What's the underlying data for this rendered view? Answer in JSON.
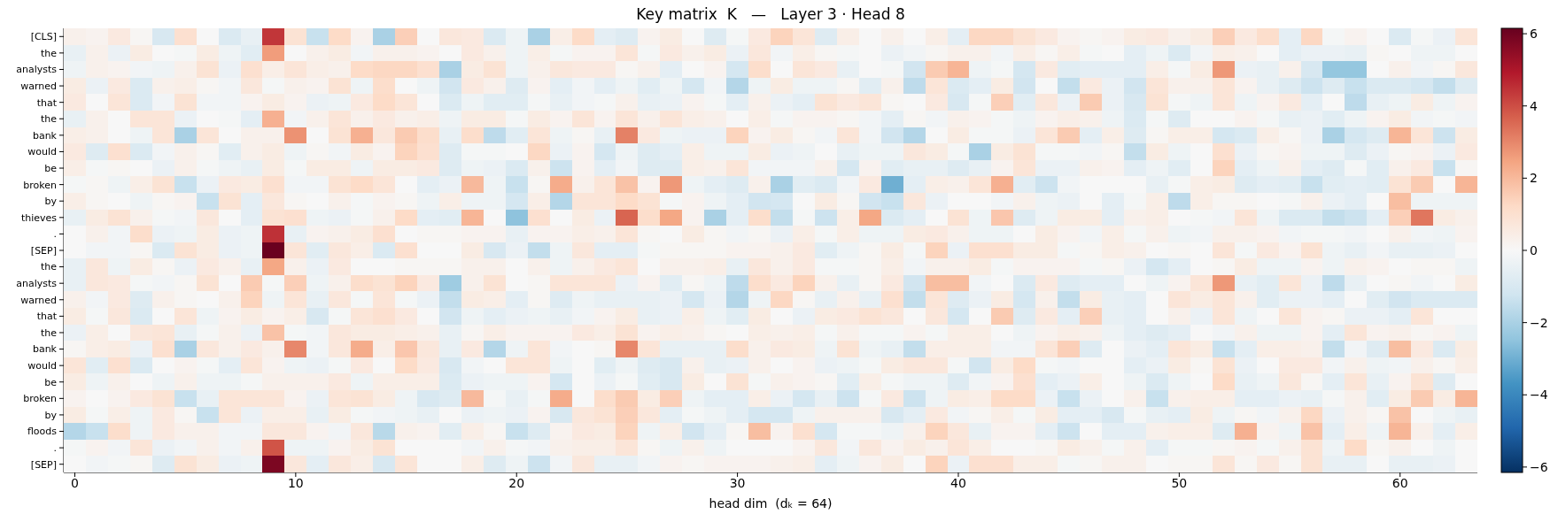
{
  "chart_data": {
    "type": "heatmap",
    "title": "Key matrix  K   —   Layer 3 · Head 8",
    "xlabel": "head dim  (dₖ = 64)",
    "x": [
      0,
      1,
      2,
      3,
      4,
      5,
      6,
      7,
      8,
      9,
      10,
      11,
      12,
      13,
      14,
      15,
      16,
      17,
      18,
      19,
      20,
      21,
      22,
      23,
      24,
      25,
      26,
      27,
      28,
      29,
      30,
      31,
      32,
      33,
      34,
      35,
      36,
      37,
      38,
      39,
      40,
      41,
      42,
      43,
      44,
      45,
      46,
      47,
      48,
      49,
      50,
      51,
      52,
      53,
      54,
      55,
      56,
      57,
      58,
      59,
      60,
      61,
      62,
      63
    ],
    "xlim": [
      -0.5,
      63.5
    ],
    "xticks": [
      0,
      10,
      20,
      30,
      40,
      50,
      60
    ],
    "y_categories": [
      "[CLS]",
      "the",
      "analysts",
      "warned",
      "that",
      "the",
      "bank",
      "would",
      "be",
      "broken",
      "by",
      "thieves",
      ".",
      "[SEP]",
      "the",
      "analysts",
      "warned",
      "that",
      "the",
      "bank",
      "would",
      "be",
      "broken",
      "by",
      "floods",
      ".",
      "[SEP]"
    ],
    "clim": [
      -6.15,
      6.15
    ],
    "cticks": [
      {
        "value": -6,
        "label": "−6"
      },
      {
        "value": -4,
        "label": "−4"
      },
      {
        "value": -2,
        "label": "−2"
      },
      0,
      2,
      4,
      6
    ],
    "cells": [
      [
        0.3,
        0.2,
        0.6,
        0.1,
        -1.0,
        1.0,
        0,
        -0.9,
        -0.5,
        4.4,
        0.9,
        -1.4,
        1.2,
        0.2,
        -2.0,
        1.5,
        0,
        0.7,
        0.6,
        -0.9,
        -0.3,
        -2.0,
        0.4,
        1.2,
        -0.6,
        -0.8,
        0.2,
        0.5,
        0,
        -0.8,
        -0.1,
        0.6,
        1.4,
        0.8,
        -0.8,
        0.4,
        0,
        0.3,
        0,
        0.4,
        -0.6,
        1.3,
        1.3,
        0.9,
        0.6,
        0.2,
        0.1,
        0.2,
        0.5,
        0.6,
        0.3,
        0.5,
        1.5,
        0.6,
        1.1,
        -0.6,
        1.3,
        -0.1,
        0.2,
        0,
        -0.9,
        -0.1,
        -0.4,
        0.8
      ],
      [
        -0.5,
        0.3,
        -0.4,
        0.5,
        0,
        -0.1,
        0.5,
        -0.3,
        -0.7,
        2.6,
        0,
        0.3,
        0.5,
        -0.2,
        0.3,
        0.3,
        0.2,
        0,
        0.6,
        0.3,
        -0.3,
        0.4,
        -0.1,
        0.2,
        0.2,
        0.8,
        -0.1,
        0.6,
        0.3,
        0.5,
        -0.4,
        0.7,
        -0.2,
        0.4,
        0.1,
        -0.1,
        0,
        -0.4,
        -0.2,
        0.1,
        0.3,
        0.3,
        -0.2,
        0.4,
        0.1,
        0.4,
        -0.1,
        0,
        -0.6,
        -0.3,
        -0.9,
        -0.2,
        0.4,
        0.3,
        0,
        -0.6,
        -0.4,
        -0.4,
        -0.5,
        0.1,
        0,
        -0.3,
        -0.3,
        0
      ],
      [
        -0.3,
        0.3,
        0.2,
        -0.2,
        -0.3,
        0.3,
        0.9,
        -0.4,
        1.0,
        0.4,
        0.8,
        0.4,
        0.3,
        1.2,
        1.3,
        1.3,
        1.0,
        -2.0,
        0.5,
        0.9,
        -0.3,
        0.3,
        0.7,
        0.6,
        0.6,
        0.1,
        0.3,
        -0.6,
        0,
        0.2,
        -1.1,
        1.1,
        0,
        0.8,
        0.6,
        -0.5,
        0,
        -0.1,
        -1.2,
        1.6,
        2.1,
        -0.3,
        -0.1,
        -1.1,
        0.6,
        -0.7,
        -0.6,
        -0.6,
        -0.6,
        0.4,
        -0.1,
        0.5,
        2.7,
        -0.4,
        -0.5,
        0.3,
        -1.0,
        -2.4,
        -2.4,
        0,
        0.3,
        -0.2,
        0.1,
        0.7
      ],
      [
        0.5,
        -0.4,
        0.6,
        -0.9,
        0.3,
        0.4,
        0.1,
        -0.2,
        0.7,
        -0.1,
        0.3,
        0.2,
        0.9,
        -0.3,
        1.1,
        0,
        -0.3,
        -1.2,
        0.6,
        0.3,
        -0.8,
        0.2,
        -0.6,
        -0.2,
        -0.6,
        -0.3,
        -0.7,
        -0.3,
        -1.1,
        -0.2,
        -1.8,
        -0.3,
        0.5,
        -0.3,
        -0.3,
        0.1,
        -0.7,
        0.3,
        -1.6,
        0.8,
        -0.9,
        -0.6,
        0.5,
        -1.2,
        0,
        -1.5,
        0.6,
        -0.4,
        -1.2,
        0.8,
        0.3,
        0.3,
        0.8,
        0.2,
        -0.5,
        -0.8,
        -1.3,
        -0.8,
        -1.4,
        -0.9,
        -0.9,
        -1.1,
        -1.5,
        -0.8
      ],
      [
        0.6,
        0,
        0.8,
        -0.9,
        -0.2,
        0.9,
        -0.2,
        -0.2,
        0.2,
        0.5,
        0.2,
        -0.4,
        -0.3,
        0.6,
        1.2,
        0.8,
        0,
        -0.9,
        -0.3,
        -0.7,
        -0.7,
        -0.1,
        -0.5,
        -0.2,
        -0.1,
        0.3,
        -0.5,
        -0.4,
        0.2,
        -0.1,
        -0.6,
        0.3,
        -0.4,
        -0.6,
        0.9,
        0.6,
        0.8,
        0.1,
        0,
        0.6,
        -1.0,
        -0.1,
        1.5,
        -0.7,
        0.7,
        -0.4,
        1.6,
        -0.4,
        -1.0,
        0.9,
        -0.1,
        -0.3,
        0.8,
        -0.3,
        0.2,
        0.6,
        -0.6,
        0,
        -1.6,
        -0.5,
        -0.3,
        0.5,
        -0.3,
        0.2
      ],
      [
        -0.5,
        0.3,
        0,
        0.8,
        0.8,
        -0.4,
        0,
        -0.1,
        -0.6,
        2.2,
        -0.2,
        0.3,
        0.8,
        0.3,
        0.6,
        0.3,
        0.4,
        -0.3,
        0.5,
        0.5,
        -0.1,
        0.5,
        0.2,
        0.8,
        0.2,
        0.8,
        0.3,
        0.8,
        0.4,
        0.3,
        0,
        0.4,
        -0.1,
        0.2,
        0.2,
        0.1,
        -0.2,
        -0.6,
        0.1,
        -0.2,
        0.3,
        0.2,
        -0.1,
        -0.3,
        0.2,
        0.4,
        0.3,
        -0.3,
        -0.9,
        -0.1,
        -0.8,
        0,
        0,
        0.2,
        -0.1,
        -0.5,
        -0.4,
        -0.7,
        -0.3,
        0.2,
        0.5,
        -0.2,
        -0.1,
        -0.2
      ],
      [
        0.4,
        0.3,
        0,
        -0.3,
        0.8,
        -2.0,
        0.8,
        0,
        0.3,
        0.3,
        2.8,
        0,
        0.9,
        2.2,
        0.7,
        1.6,
        1.1,
        -0.5,
        1.1,
        -1.6,
        -0.7,
        0.8,
        -0.3,
        0.1,
        -0.5,
        3.1,
        0.6,
        -0.3,
        -0.4,
        -0.4,
        1.4,
        0.2,
        0.5,
        0.1,
        -0.2,
        0.8,
        -0.2,
        -1.2,
        -1.8,
        0,
        0.5,
        -0.1,
        -0.1,
        -0.4,
        0.8,
        1.6,
        -0.6,
        0.4,
        -0.8,
        0.1,
        0.4,
        0.4,
        -1.1,
        -0.9,
        0.4,
        0.1,
        -0.4,
        -2.0,
        -1.1,
        -0.8,
        2.1,
        0.8,
        -1.3,
        0.5
      ],
      [
        0.6,
        -0.8,
        1.0,
        -0.9,
        -0.2,
        0.3,
        0.1,
        -0.7,
        0.3,
        0.5,
        -0.3,
        0.1,
        -0.2,
        0.5,
        0.2,
        1.4,
        1.0,
        -0.8,
        -0.1,
        -0.1,
        0,
        1.3,
        -0.4,
        0.2,
        -1.1,
        -0.3,
        -0.8,
        -0.6,
        0.4,
        -0.3,
        -0.3,
        0.5,
        -0.4,
        -0.3,
        0,
        -0.5,
        -0.3,
        -0.3,
        0.7,
        0.5,
        -0.1,
        -2.0,
        0.5,
        0.9,
        -0.1,
        -0.1,
        -0.2,
        0.1,
        -1.5,
        0.5,
        -0.3,
        0,
        1.0,
        -0.4,
        0.1,
        0.2,
        -0.3,
        -0.3,
        -0.8,
        -0.4,
        0.1,
        0.2,
        -0.4,
        0.6
      ],
      [
        0.4,
        -0.1,
        0.1,
        0,
        -0.4,
        0.3,
        -0.1,
        -0.3,
        -0.5,
        0.5,
        -0.1,
        0.5,
        0.5,
        -0.3,
        0.5,
        0.5,
        0.6,
        -0.8,
        -0.3,
        -0.4,
        -0.9,
        0.3,
        -1.3,
        0.2,
        -0.6,
        -0.2,
        -0.8,
        -0.8,
        0.4,
        0.3,
        0.8,
        -0.2,
        -0.2,
        -0.2,
        0.3,
        -1.1,
        0.2,
        -0.7,
        -0.5,
        -0.5,
        -0.8,
        -0.5,
        0.2,
        0.8,
        -0.4,
        -0.4,
        0.3,
        0.2,
        -0.6,
        -0.3,
        -0.7,
        0,
        1.4,
        -0.6,
        -0.3,
        0.3,
        -0.6,
        -0.8,
        -0.1,
        -0.7,
        0.3,
        0.6,
        -1.4,
        0.1
      ],
      [
        -0.1,
        0.1,
        -0.3,
        0.4,
        0.9,
        -1.4,
        -0.4,
        0.6,
        0.5,
        1.0,
        -0.2,
        -0.2,
        0.9,
        1.2,
        0.8,
        0,
        -0.6,
        -0.4,
        2.0,
        -0.3,
        -1.4,
        0.1,
        2.3,
        0.3,
        0.8,
        1.8,
        0.2,
        2.7,
        -0.3,
        -0.6,
        -0.8,
        0.3,
        -2.0,
        -0.7,
        -0.9,
        -0.2,
        0.6,
        -3.0,
        -0.6,
        0.4,
        0.3,
        0.8,
        2.2,
        -0.7,
        -1.3,
        -0.2,
        0,
        0,
        0,
        -0.5,
        -0.1,
        0.4,
        0.5,
        -0.8,
        -0.6,
        -0.7,
        -1.4,
        -0.7,
        -0.6,
        -0.7,
        0.9,
        1.6,
        0,
        2.1
      ],
      [
        0.4,
        0.1,
        0,
        -0.3,
        0.1,
        0.2,
        -1.4,
        0.9,
        -0.6,
        0.7,
        0.1,
        0,
        0.3,
        -0.1,
        0.2,
        0.1,
        -0.3,
        0.4,
        -0.3,
        -0.3,
        -1.1,
        0.4,
        -1.8,
        0.8,
        0.8,
        1.2,
        0.9,
        -0.1,
        0.2,
        -0.3,
        -0.6,
        -1.2,
        -1.1,
        0,
        0.5,
        0.1,
        -1.2,
        -1.4,
        0.7,
        -0.4,
        0,
        0,
        -0.2,
        0.3,
        -0.3,
        -0.4,
        0,
        -0.6,
        -0.1,
        0.4,
        -1.6,
        0.4,
        0.1,
        0.1,
        0,
        -0.1,
        0.3,
        -0.4,
        -0.6,
        0,
        1.9,
        -0.3,
        -0.3,
        -0.3
      ],
      [
        -0.5,
        0.5,
        0.9,
        0.3,
        -0.1,
        -0.2,
        0.7,
        0,
        -0.6,
        0.9,
        1.0,
        -0.3,
        -0.4,
        -0.1,
        0.3,
        1.2,
        -0.6,
        -0.7,
        2.1,
        0,
        -2.5,
        1.0,
        0,
        0.5,
        -0.4,
        3.6,
        1.1,
        2.4,
        0.2,
        -2.0,
        -0.6,
        1.1,
        -1.5,
        -0.1,
        -1.3,
        0.4,
        2.4,
        -0.9,
        -0.6,
        0,
        0.9,
        -0.3,
        1.7,
        -0.8,
        -0.3,
        0.5,
        0.5,
        -0.6,
        0.3,
        0.4,
        0,
        -0.1,
        -0.2,
        0.8,
        -0.3,
        -0.9,
        -0.9,
        -1.5,
        -1.3,
        -0.6,
        1.5,
        3.3,
        0.5,
        0.3
      ],
      [
        0,
        0.3,
        -0.2,
        1.1,
        -0.4,
        -0.3,
        0.5,
        -0.4,
        -0.3,
        4.5,
        -0.5,
        0.2,
        0.3,
        0.5,
        1.0,
        0,
        0.1,
        0.1,
        0.2,
        0.2,
        -0.5,
        0.2,
        0.2,
        0.4,
        0.3,
        0.8,
        0.1,
        0,
        0.5,
        0.1,
        -0.2,
        0.1,
        -0.4,
        0.4,
        -0.1,
        0.4,
        -0.3,
        -0.3,
        0.5,
        0.6,
        0.3,
        -0.3,
        -0.3,
        0,
        0.5,
        0.2,
        -0.2,
        0.4,
        -0.1,
        0.3,
        -0.3,
        -0.2,
        0.3,
        0.3,
        0.2,
        -0.2,
        -0.1,
        -0.1,
        -0.2,
        0,
        0.3,
        -0.2,
        -0.3,
        0.2
      ],
      [
        0,
        -0.2,
        -0.2,
        0.1,
        -0.9,
        0.9,
        0.5,
        -0.4,
        -0.3,
        6.1,
        0.8,
        -0.7,
        0.7,
        0.4,
        -0.9,
        1.0,
        0,
        0,
        0.5,
        -1.0,
        -0.4,
        -1.5,
        -0.3,
        0.7,
        -0.6,
        -0.6,
        -0.1,
        0.1,
        0.1,
        0.1,
        0.2,
        0.2,
        0.3,
        0.6,
        -0.7,
        -0.3,
        0.1,
        0.5,
        -0.1,
        1.4,
        -0.4,
        1.0,
        1.0,
        0.5,
        0.5,
        -0.1,
        0.1,
        0.4,
        0.3,
        0,
        0.1,
        0,
        0.8,
        -0.1,
        0.6,
        0.2,
        0.9,
        -0.3,
        -0.5,
        -0.2,
        -0.5,
        -0.5,
        -0.4,
        0
      ],
      [
        -0.5,
        0.7,
        -0.3,
        0.5,
        0.1,
        -0.4,
        0.6,
        0.3,
        -0.5,
        2.4,
        0.3,
        -0.4,
        0.6,
        0,
        0,
        0.1,
        0.1,
        0.1,
        0.3,
        0.3,
        0,
        0.3,
        -0.3,
        0.3,
        0.6,
        0.8,
        0,
        0.3,
        0.3,
        0.4,
        -0.5,
        0.7,
        0.3,
        0.6,
        -0.1,
        -0.1,
        0.1,
        0.4,
        -0.2,
        0.3,
        0.3,
        0.5,
        -0.1,
        0.2,
        0.2,
        0.2,
        -0.1,
        0.1,
        -0.4,
        -1.1,
        -0.6,
        0,
        0.1,
        0.5,
        -0.3,
        -0.3,
        0.2,
        -0.3,
        0.3,
        0.2,
        0,
        0.1,
        0.1,
        -0.3
      ],
      [
        -0.5,
        0.7,
        0.6,
        -0.1,
        -0.2,
        0.1,
        0.9,
        0,
        1.6,
        -0.1,
        1.5,
        -0.3,
        0.3,
        1.1,
        0.9,
        1.4,
        0.6,
        -2.2,
        0.3,
        0.9,
        0,
        0.1,
        0.8,
        0.8,
        0.8,
        -0.4,
        0.2,
        -0.7,
        0.1,
        -0.3,
        -1.6,
        1.1,
        0.6,
        1.4,
        0.3,
        -0.5,
        0.1,
        0.6,
        -1.2,
        1.9,
        1.9,
        -0.2,
        0,
        -0.9,
        0.6,
        -0.8,
        -0.6,
        -0.6,
        0,
        -0.3,
        0.2,
        0.8,
        2.7,
        -0.5,
        -0.7,
        0.8,
        -0.4,
        -1.6,
        -0.5,
        0,
        0.1,
        -0.2,
        0,
        0.5
      ],
      [
        0.3,
        -0.2,
        0.6,
        -0.8,
        0.3,
        0.1,
        0,
        0.3,
        1.4,
        -0.3,
        0.8,
        -0.5,
        0.7,
        -0.1,
        0.8,
        -0.1,
        -0.4,
        -1.5,
        0.5,
        0.4,
        -0.6,
        0.1,
        -0.8,
        -0.3,
        -0.5,
        -0.5,
        -0.5,
        -0.4,
        -1.1,
        -0.4,
        -1.8,
        -0.3,
        1.3,
        0.1,
        -0.5,
        0.3,
        -0.5,
        1.0,
        -1.5,
        0.8,
        -0.8,
        -0.4,
        0.5,
        -1.1,
        0.3,
        -1.5,
        0.5,
        -0.5,
        -0.6,
        0,
        0.8,
        0.5,
        0.8,
        0.3,
        -0.7,
        -0.4,
        -0.4,
        -0.6,
        0,
        -0.7,
        -1.2,
        -0.9,
        -0.9,
        -0.9
      ],
      [
        0.5,
        -0.1,
        0.7,
        -0.9,
        0,
        0.8,
        -0.3,
        0.2,
        0.5,
        0.2,
        0.4,
        -1.0,
        -0.1,
        0.8,
        1.0,
        0.6,
        0,
        -1.2,
        -0.3,
        -0.6,
        -0.4,
        -0.3,
        -0.5,
        -0.2,
        0.2,
        0.5,
        -0.5,
        -0.4,
        0.4,
        -0.3,
        -0.7,
        0.5,
        0,
        -0.4,
        0.5,
        0.6,
        0.9,
        0.7,
        0,
        0.7,
        -1.1,
        0,
        1.6,
        -0.8,
        0.6,
        -0.6,
        1.5,
        -0.5,
        -0.6,
        0,
        0.3,
        -0.4,
        0.8,
        -0.3,
        0,
        0.8,
        0.2,
        0.1,
        -0.4,
        -0.4,
        -0.6,
        0.8,
        0,
        0
      ],
      [
        -0.4,
        0.4,
        0,
        0.7,
        0.8,
        -0.5,
        -0.1,
        0.3,
        -0.4,
        1.8,
        -0.1,
        -0.2,
        0.7,
        0.5,
        0.5,
        0.4,
        0.3,
        -0.5,
        0.1,
        0.4,
        0.2,
        0.2,
        0.2,
        0.6,
        0.4,
        0.9,
        0.2,
        0.4,
        0.3,
        0.1,
        0,
        0.4,
        0.3,
        0.4,
        -0.1,
        0.3,
        -0.1,
        -0.1,
        0.2,
        -0.1,
        0.4,
        0.4,
        0,
        -0.3,
        0.2,
        0.4,
        0.3,
        -0.3,
        -0.6,
        -0.8,
        -0.6,
        0,
        -0.2,
        0.3,
        -0.3,
        -0.3,
        0.2,
        -0.6,
        0.8,
        0.2,
        0.3,
        0.1,
        0.2,
        -0.3
      ],
      [
        0.1,
        0.4,
        0.5,
        -0.4,
        1.0,
        -2.0,
        0.7,
        0.3,
        0.6,
        0.3,
        3.0,
        -0.2,
        0.7,
        2.3,
        0.4,
        1.7,
        0.7,
        -0.5,
        0.6,
        -1.8,
        -0.3,
        0.8,
        -0.2,
        0,
        0.1,
        3.0,
        0.8,
        -0.5,
        -0.5,
        -0.5,
        1.1,
        0.3,
        0.6,
        0.5,
        -0.3,
        0.9,
        -0.3,
        -0.5,
        -1.5,
        0.4,
        0.4,
        0.4,
        -0.2,
        -0.2,
        0.8,
        1.5,
        -0.8,
        0,
        -0.4,
        -0.6,
        0.8,
        0.5,
        -1.4,
        -0.6,
        0.4,
        0.4,
        0.3,
        -1.5,
        -0.2,
        -0.8,
        1.9,
        0.6,
        -0.9,
        0.5
      ],
      [
        0.8,
        -0.7,
        1.0,
        -0.9,
        0,
        0.2,
        -0.1,
        -0.6,
        0.8,
        0.2,
        -0.3,
        -0.4,
        -0.1,
        0.6,
        0,
        1.2,
        0.6,
        -1.0,
        -0.2,
        0,
        0.8,
        0.8,
        -0.3,
        0,
        -0.7,
        -0.3,
        -0.8,
        -1.0,
        0.3,
        -0.5,
        -0.4,
        0.3,
        0,
        0.2,
        -0.4,
        -0.3,
        -0.1,
        0.5,
        0.7,
        0.7,
        -0.1,
        -1.2,
        0.5,
        1.2,
        -0.1,
        -0.2,
        0,
        0,
        -0.6,
        -0.4,
        0.5,
        0.1,
        0.9,
        -0.4,
        0,
        0.6,
        0.6,
        -0.2,
        0.3,
        -0.3,
        -0.2,
        0.3,
        0.1,
        0.4
      ],
      [
        0.5,
        -0.3,
        0.3,
        0,
        -0.3,
        0.3,
        -0.3,
        -0.3,
        -0.1,
        0.3,
        0.3,
        0.3,
        0.6,
        -0.3,
        0.4,
        0.4,
        0.4,
        -0.9,
        -0.4,
        -0.3,
        -0.3,
        0.2,
        -1.1,
        0,
        -0.4,
        -0.1,
        -0.7,
        -1.0,
        0.5,
        0,
        0.9,
        -0.1,
        0.3,
        0.2,
        0.1,
        -0.7,
        0.4,
        -0.1,
        -0.3,
        -0.3,
        -0.8,
        -0.2,
        0.2,
        1.0,
        -0.6,
        -0.4,
        0.4,
        0,
        -0.3,
        -0.9,
        -0.3,
        0,
        1.2,
        -0.5,
        -0.3,
        0.7,
        0.1,
        -0.6,
        0.8,
        -0.5,
        0.2,
        0.9,
        -0.8,
        0
      ],
      [
        0.2,
        0,
        0.2,
        0.6,
        0.9,
        -1.4,
        -0.5,
        0.8,
        0.8,
        0.8,
        0.2,
        -0.4,
        0.8,
        0.9,
        0.5,
        -0.3,
        -1.0,
        -0.8,
        2.0,
        -0.1,
        -0.5,
        -0.1,
        2.3,
        0,
        1.1,
        1.6,
        0.5,
        1.5,
        -0.3,
        -0.6,
        -0.6,
        0.4,
        -0.4,
        -1.1,
        -0.5,
        -1.3,
        -0.1,
        0.6,
        -1.3,
        -0.3,
        0.5,
        0.4,
        1.2,
        1.2,
        -0.4,
        -1.4,
        -0.4,
        0,
        0.3,
        -1.4,
        0.3,
        0.4,
        0.4,
        -0.6,
        -0.6,
        -0.4,
        -0.5,
        -0.1,
        0.3,
        -0.7,
        0.5,
        1.6,
        0.5,
        2.1
      ],
      [
        0.5,
        -0.1,
        0.4,
        -0.3,
        0.6,
        0.1,
        -1.4,
        0.8,
        -0.4,
        0.4,
        0.4,
        -0.5,
        0.5,
        -0.1,
        -0.2,
        -0.3,
        -0.5,
        0,
        -0.4,
        -0.3,
        -0.4,
        0.2,
        -1.0,
        0.7,
        0.9,
        1.5,
        0.7,
        -0.6,
        -0.1,
        -0.3,
        -0.6,
        -1.1,
        -1.1,
        -0.3,
        0.3,
        0.3,
        0.3,
        -1.0,
        -0.6,
        0.6,
        -0.2,
        0.1,
        0.4,
        -0.1,
        0.5,
        -0.6,
        -0.6,
        -1.0,
        -0.1,
        -0.5,
        -0.6,
        0.5,
        -0.3,
        0.1,
        -0.2,
        0.3,
        1.3,
        -0.4,
        0.3,
        0.1,
        1.8,
        0,
        -0.3,
        -0.5
      ],
      [
        -1.8,
        -1.4,
        1.1,
        -0.3,
        0.6,
        0.3,
        0.3,
        -0.2,
        -0.2,
        0.7,
        0.7,
        0.2,
        -0.2,
        0.7,
        -1.7,
        0.3,
        0.2,
        -0.7,
        0.4,
        0.1,
        -1.4,
        -0.8,
        0.2,
        0.6,
        0.5,
        1.4,
        -0.3,
        0.4,
        -1.2,
        -0.6,
        0.1,
        1.9,
        0.2,
        1.0,
        -1.1,
        -0.1,
        -0.1,
        -0.3,
        0.3,
        1.4,
        0.7,
        -0.5,
        0.2,
        0.2,
        -0.6,
        -1.3,
        0,
        -0.6,
        -0.6,
        0.3,
        0.4,
        0.4,
        -0.8,
        2.2,
        0.2,
        -0.3,
        1.8,
        -0.6,
        0.4,
        -0.3,
        2.1,
        0.3,
        -0.6,
        0.4
      ],
      [
        -0.1,
        0.2,
        -0.2,
        0.8,
        -0.4,
        -0.2,
        0.3,
        -0.2,
        0.3,
        3.9,
        -0.3,
        -0.3,
        0.2,
        0.5,
        0.9,
        0,
        0,
        0,
        -0.2,
        0.3,
        -0.1,
        -0.2,
        0.3,
        0.4,
        0.4,
        0.8,
        0.1,
        -0.3,
        0.3,
        -0.3,
        0,
        0,
        0,
        0.2,
        0.7,
        -0.2,
        0.7,
        0.2,
        0.5,
        0.3,
        0.8,
        0.4,
        0,
        0,
        0.1,
        0.5,
        0.3,
        -0.1,
        0.3,
        -0.6,
        -0.1,
        -0.1,
        0.1,
        0.2,
        -0.1,
        0.3,
        0.9,
        -0.3,
        1.2,
        0.1,
        0.3,
        0,
        -0.3,
        0
      ],
      [
        0,
        -0.2,
        -0.1,
        0.1,
        -0.8,
        0.9,
        0.5,
        -0.4,
        -0.3,
        5.8,
        0.7,
        -0.6,
        0.7,
        0.4,
        -1.0,
        0.8,
        0,
        0,
        0.4,
        -0.8,
        -0.3,
        -1.3,
        -0.2,
        0.7,
        -0.5,
        -0.5,
        -0.2,
        0.2,
        0.1,
        0.2,
        0.2,
        0.2,
        0.3,
        0.4,
        -0.6,
        -0.3,
        0.2,
        0.5,
        0,
        1.4,
        -0.4,
        1.0,
        1.0,
        0.4,
        0.4,
        -0.1,
        0.1,
        0.3,
        0.3,
        0,
        0.1,
        0.1,
        0.8,
        0.1,
        0.6,
        0.1,
        0.9,
        -0.5,
        -0.5,
        0,
        -0.5,
        -0.5,
        -0.4,
        0
      ]
    ]
  }
}
